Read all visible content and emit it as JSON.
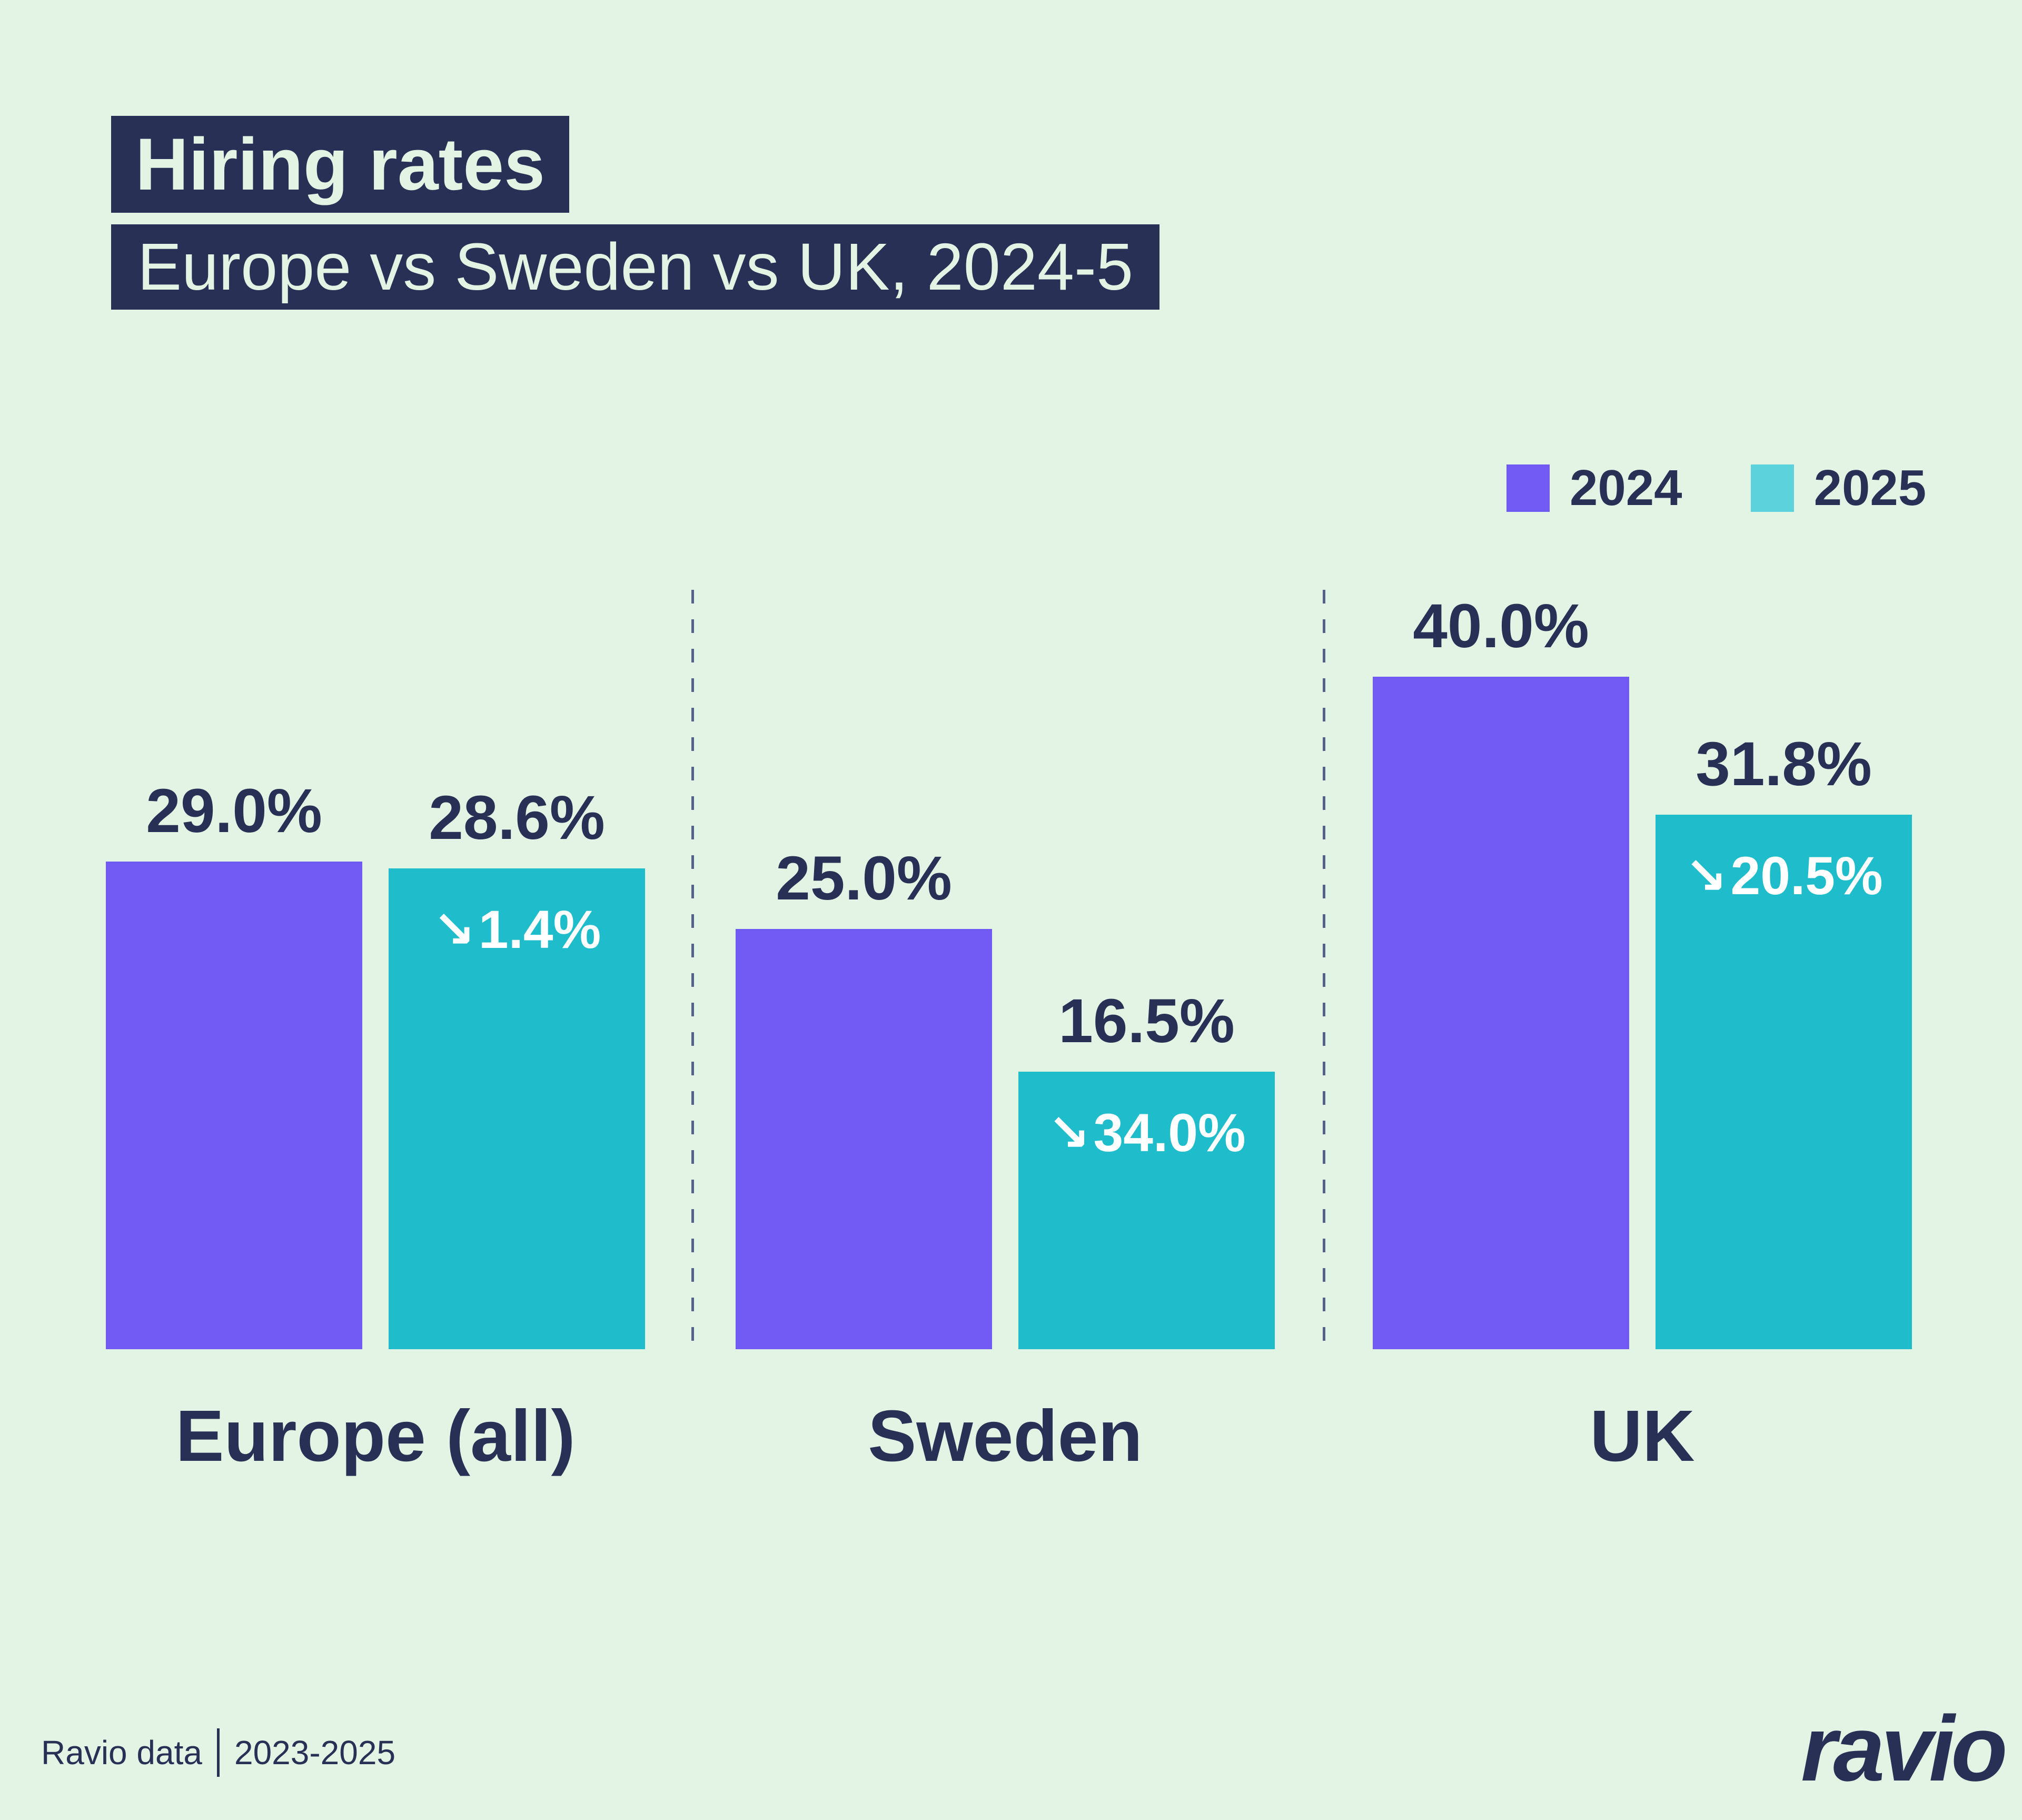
{
  "header": {
    "title": "Hiring rates",
    "subtitle": "Europe vs Sweden vs UK, 2024-5"
  },
  "legend": {
    "position": "top-right",
    "items": [
      {
        "label": "2024",
        "swatch_color": "#7159f3"
      },
      {
        "label": "2025",
        "swatch_color": "#5cd2dd"
      }
    ]
  },
  "icons": {
    "down_right_arrow": "↘"
  },
  "colors": {
    "mint": "#e2f5e4",
    "navy": "#293055",
    "purple": "#7159f3",
    "teal": "#1fbdcb",
    "legend_teal": "#5cd2dd",
    "divider": "#3d4878",
    "white": "#ffffff"
  },
  "chart_data": {
    "type": "bar",
    "title": "Hiring rates",
    "subtitle": "Europe vs Sweden vs UK, 2024-5",
    "categories": [
      "Europe (all)",
      "Sweden",
      "UK"
    ],
    "series": [
      {
        "name": "2024",
        "color": "#7159f3",
        "values": [
          29.0,
          25.0,
          40.0
        ],
        "labels": [
          "29.0%",
          "25.0%",
          "40.0%"
        ]
      },
      {
        "name": "2025",
        "color": "#1fbdcb",
        "values": [
          28.6,
          16.5,
          31.8
        ],
        "labels": [
          "28.6%",
          "16.5%",
          "31.8%"
        ],
        "changes": [
          "1.4%",
          "34.0%",
          "20.5%"
        ]
      }
    ],
    "xlabel": "",
    "ylabel": "",
    "ylim": [
      0,
      40
    ],
    "grid": false,
    "legend_position": "top-right",
    "dividers_between_groups": true
  },
  "footer": {
    "source": "Ravio data",
    "period": "2023-2025",
    "logo_text": "ravio"
  }
}
